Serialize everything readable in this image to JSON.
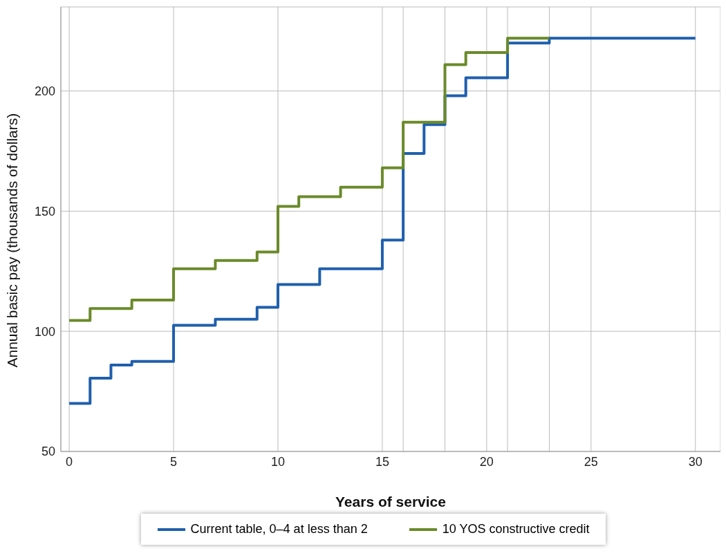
{
  "chart_data": {
    "type": "step",
    "xlabel": "Years of service",
    "ylabel": "Annual basic pay (thousands of dollars)",
    "xlim": [
      -0.4,
      31.2
    ],
    "xticks": [
      0,
      5,
      10,
      15,
      {
        "value": 16,
        "label": null
      },
      {
        "value": 18,
        "label": null
      },
      20,
      {
        "value": 21,
        "label": null
      },
      {
        "value": 23,
        "label": null
      },
      25,
      30
    ],
    "ylim": [
      50,
      235
    ],
    "yticks": [
      50,
      100,
      150,
      200
    ],
    "grid": true,
    "legend": "bottom",
    "line_style": "solid",
    "marker": "none",
    "series": [
      {
        "name": "Current table, 0–4 at less than 2",
        "color": "#1f5fad",
        "x": [
          0,
          1,
          2,
          3,
          5,
          7,
          9,
          10,
          12,
          15,
          16,
          17,
          18,
          19,
          21,
          23,
          30
        ],
        "values": [
          70,
          80.5,
          86,
          87.5,
          102.5,
          105,
          110,
          119.5,
          126,
          138,
          174,
          186,
          198,
          205.5,
          220,
          222,
          222
        ]
      },
      {
        "name": "10 YOS constructive credit",
        "color": "#6a8a2a",
        "x": [
          0,
          1,
          3,
          5,
          7,
          9,
          10,
          11,
          13,
          15,
          16,
          18,
          19,
          21,
          23
        ],
        "values": [
          104.5,
          109.5,
          113,
          126,
          129.5,
          133,
          152,
          156,
          160,
          168,
          187,
          211,
          216,
          222,
          222
        ]
      }
    ]
  }
}
